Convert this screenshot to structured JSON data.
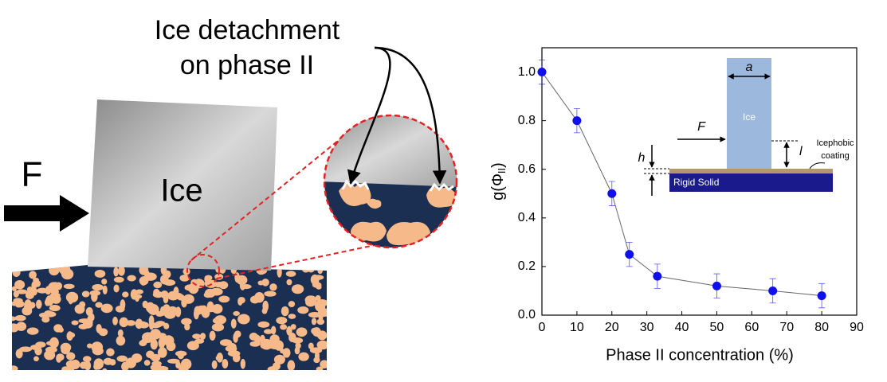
{
  "illustration": {
    "heading": [
      "Ice detachment",
      "on phase II"
    ],
    "force": "F",
    "block": "Ice"
  },
  "chart_data": {
    "type": "line",
    "x_label": "Phase II concentration (%)",
    "y_label": [
      "g(Φ",
      "II",
      ")"
    ],
    "x": [
      0,
      10,
      20,
      25,
      33,
      50,
      66,
      80
    ],
    "series": [
      {
        "color": "#1010ee",
        "line_color": "#666666",
        "values": [
          1.0,
          0.8,
          0.5,
          0.25,
          0.16,
          0.12,
          0.1,
          0.08
        ],
        "errors": [
          0.05,
          0.05,
          0.05,
          0.05,
          0.05,
          0.05,
          0.05,
          0.05
        ]
      }
    ],
    "xlim": [
      0,
      90
    ],
    "xticks": [
      0,
      10,
      20,
      30,
      40,
      50,
      60,
      70,
      80,
      90
    ],
    "ylim": [
      0,
      1.1
    ],
    "yticks": [
      {
        "value": 0,
        "label": "0.0"
      },
      {
        "value": 0.2,
        "label": "0.2"
      },
      {
        "value": 0.4,
        "label": "0.4"
      },
      {
        "value": 0.6,
        "label": "0.6"
      },
      {
        "value": 0.8,
        "label": "0.8"
      },
      {
        "value": 1.0,
        "label": "1.0"
      }
    ],
    "inset": {
      "width": "a",
      "block": "Ice",
      "force": "F",
      "thickness": "h",
      "height": "l",
      "coating": [
        "Icephobic",
        "coating"
      ],
      "substrate": "Rigid Solid"
    }
  }
}
